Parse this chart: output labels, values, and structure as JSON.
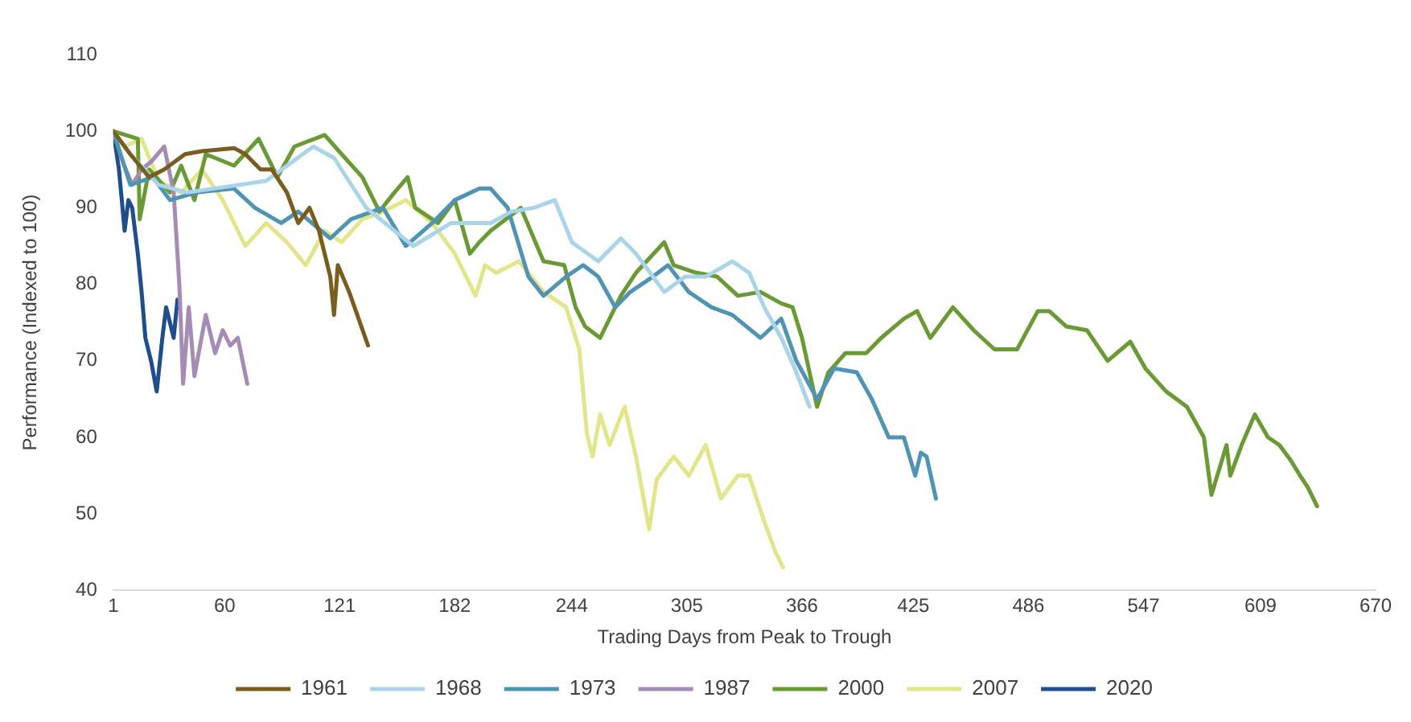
{
  "chart_data": {
    "type": "line",
    "xlabel": "Trading Days from Peak to Trough",
    "ylabel": "Performance (Indexed to 100)",
    "xlim": [
      1,
      670
    ],
    "xticks": [
      1,
      60,
      121,
      182,
      244,
      305,
      366,
      425,
      486,
      547,
      609,
      670
    ],
    "ylim": [
      40,
      110
    ],
    "yticks": [
      40,
      50,
      60,
      70,
      80,
      90,
      100,
      110
    ],
    "grid": false,
    "legend": "bottom",
    "marker": "none",
    "line_style": "solid",
    "series": [
      {
        "name": "1961",
        "color": "#7a5c1e",
        "x": [
          1,
          10,
          20,
          28,
          39,
          48,
          65,
          71,
          79,
          85,
          93,
          99,
          105,
          110,
          116,
          118,
          120,
          126,
          131,
          136
        ],
        "values": [
          100,
          97,
          94,
          95,
          97,
          97.4,
          97.8,
          97,
          95,
          95,
          92,
          88,
          90,
          87,
          81,
          76,
          82.5,
          79,
          75.5,
          72
        ]
      },
      {
        "name": "1968",
        "color": "#a9d4ea",
        "x": [
          1,
          10,
          25,
          40,
          54,
          82,
          107,
          118,
          135,
          160,
          180,
          201,
          212,
          224,
          235,
          244,
          258,
          270,
          278,
          293,
          304,
          315,
          329,
          338,
          346,
          355,
          363,
          370
        ],
        "values": [
          100,
          97,
          93,
          92,
          92.5,
          93.5,
          98,
          96.5,
          90,
          85,
          88,
          88,
          89.5,
          90,
          91,
          85.5,
          83,
          86,
          84,
          79,
          81,
          81,
          83,
          81.5,
          77,
          73,
          68.5,
          64
        ]
      },
      {
        "name": "1973",
        "color": "#4f94b5",
        "x": [
          1,
          10,
          22,
          31,
          45,
          65,
          76,
          90,
          99,
          116,
          127,
          144,
          156,
          170,
          182,
          195,
          201,
          210,
          221,
          229,
          241,
          250,
          258,
          267,
          275,
          287,
          295,
          306,
          318,
          329,
          344,
          355,
          363,
          374,
          383,
          395,
          403,
          412,
          420,
          426,
          429,
          432,
          437
        ],
        "values": [
          100,
          93,
          94,
          91,
          92,
          92.5,
          90,
          88,
          89.5,
          86,
          88.5,
          90,
          85,
          88,
          91,
          92.5,
          92.5,
          90,
          81,
          78.5,
          81,
          82.5,
          81,
          77,
          79,
          81,
          82.5,
          79,
          77,
          76,
          73,
          75.5,
          70,
          65,
          69,
          68.5,
          65,
          60,
          60,
          55,
          58,
          57.5,
          52
        ]
      },
      {
        "name": "1987",
        "color": "#a58bb5",
        "x": [
          1,
          6,
          11,
          16,
          21,
          28,
          33,
          36,
          38,
          41,
          44,
          47,
          50,
          55,
          59,
          63,
          67,
          72
        ],
        "values": [
          100,
          96,
          93,
          95,
          96,
          98,
          92,
          80,
          67,
          77,
          68,
          72,
          76,
          71,
          74,
          72,
          73,
          67
        ]
      },
      {
        "name": "2000",
        "color": "#6a9a34",
        "x": [
          1,
          14,
          15,
          20,
          31,
          37,
          44,
          50,
          65,
          78,
          88,
          97,
          113,
          122,
          133,
          142,
          150,
          157,
          161,
          173,
          182,
          190,
          195,
          201,
          217,
          229,
          240,
          246,
          251,
          259,
          270,
          278,
          293,
          298,
          310,
          321,
          332,
          344,
          355,
          361,
          366,
          374,
          380,
          389,
          400,
          408,
          420,
          427,
          434,
          446,
          457,
          468,
          480,
          491,
          497,
          506,
          517,
          528,
          540,
          548,
          559,
          570,
          579,
          583,
          591,
          593,
          599,
          606,
          613,
          619,
          625,
          630,
          634,
          639
        ],
        "values": [
          100,
          99,
          88.5,
          95,
          92,
          95.5,
          91,
          97,
          95.5,
          99,
          94,
          98,
          99.5,
          97,
          94,
          89.5,
          92,
          94,
          90,
          88,
          91,
          84,
          85.5,
          87,
          90,
          83,
          82.5,
          77,
          74.5,
          73,
          78.5,
          81.5,
          85.5,
          82.5,
          81.5,
          81,
          78.5,
          79,
          77.5,
          77,
          73,
          64,
          68.5,
          71,
          71,
          73,
          75.5,
          76.5,
          73,
          77,
          74,
          71.5,
          71.5,
          76.5,
          76.5,
          74.5,
          74,
          70,
          72.5,
          69,
          66,
          64,
          60,
          52.5,
          59,
          55,
          59,
          63,
          60,
          59,
          57,
          55,
          53.5,
          51
        ]
      },
      {
        "name": "2007",
        "color": "#e3e58a",
        "x": [
          1,
          7,
          16,
          25,
          37,
          48,
          59,
          71,
          82,
          93,
          103,
          113,
          122,
          133,
          144,
          156,
          170,
          182,
          193,
          198,
          204,
          216,
          221,
          229,
          241,
          248,
          252,
          255,
          259,
          264,
          272,
          278,
          285,
          289,
          298,
          306,
          315,
          323,
          332,
          338,
          346,
          352,
          356
        ],
        "values": [
          100,
          98,
          99,
          93.5,
          92,
          95,
          91,
          85,
          88,
          85.5,
          82.5,
          87,
          85.5,
          88.5,
          89.5,
          91,
          88,
          84,
          78.5,
          82.5,
          81.5,
          83,
          81.5,
          79,
          77,
          71.5,
          60.5,
          57.5,
          63,
          59,
          64,
          57.5,
          48,
          54.5,
          57.5,
          55,
          59,
          52,
          55,
          55,
          49,
          45,
          43
        ]
      },
      {
        "name": "2020",
        "color": "#1f4e8c",
        "x": [
          1,
          4,
          7,
          9,
          11,
          14,
          16,
          18,
          21,
          24,
          27,
          29,
          31,
          33,
          35
        ],
        "values": [
          100,
          95,
          87,
          91,
          90,
          84,
          79,
          73,
          70,
          66,
          73,
          77,
          75,
          73,
          78
        ]
      }
    ]
  }
}
